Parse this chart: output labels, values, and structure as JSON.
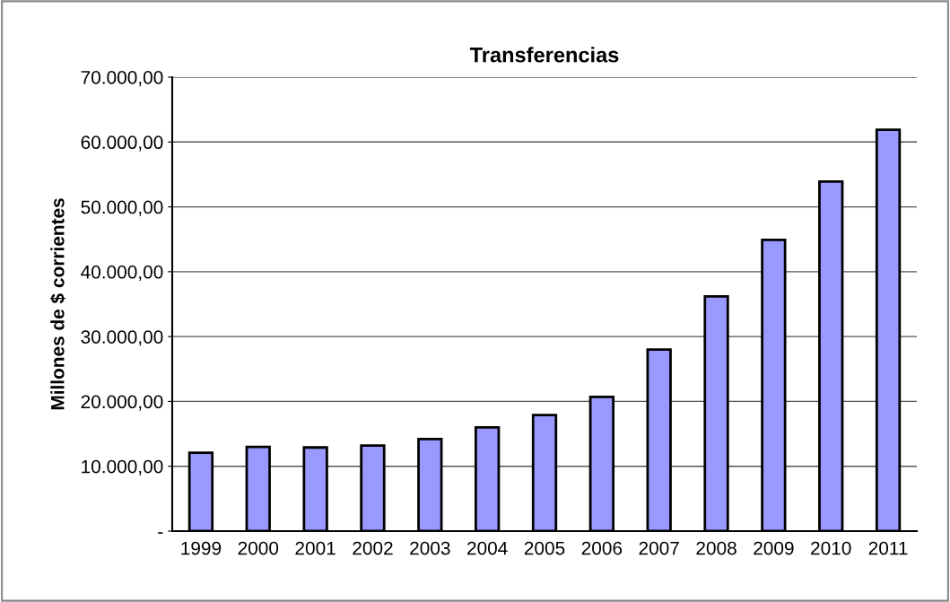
{
  "chart_data": {
    "type": "bar",
    "title": "Transferencias",
    "ylabel": "Millones de $ corrientes",
    "categories": [
      "1999",
      "2000",
      "2001",
      "2002",
      "2003",
      "2004",
      "2005",
      "2006",
      "2007",
      "2008",
      "2009",
      "2010",
      "2011"
    ],
    "values": [
      12100,
      13000,
      12900,
      13200,
      14200,
      16000,
      17900,
      20700,
      28000,
      36200,
      44900,
      53900,
      61900
    ],
    "color": "#9999ff",
    "ylim": [
      0,
      70000
    ],
    "yticks": [
      {
        "value": 0,
        "label": "-"
      },
      {
        "value": 10000,
        "label": "10.000,00"
      },
      {
        "value": 20000,
        "label": "20.000,00"
      },
      {
        "value": 30000,
        "label": "30.000,00"
      },
      {
        "value": 40000,
        "label": "40.000,00"
      },
      {
        "value": 50000,
        "label": "50.000,00"
      },
      {
        "value": 60000,
        "label": "60.000,00"
      },
      {
        "value": 70000,
        "label": "70.000,00"
      }
    ],
    "grid": "y"
  }
}
